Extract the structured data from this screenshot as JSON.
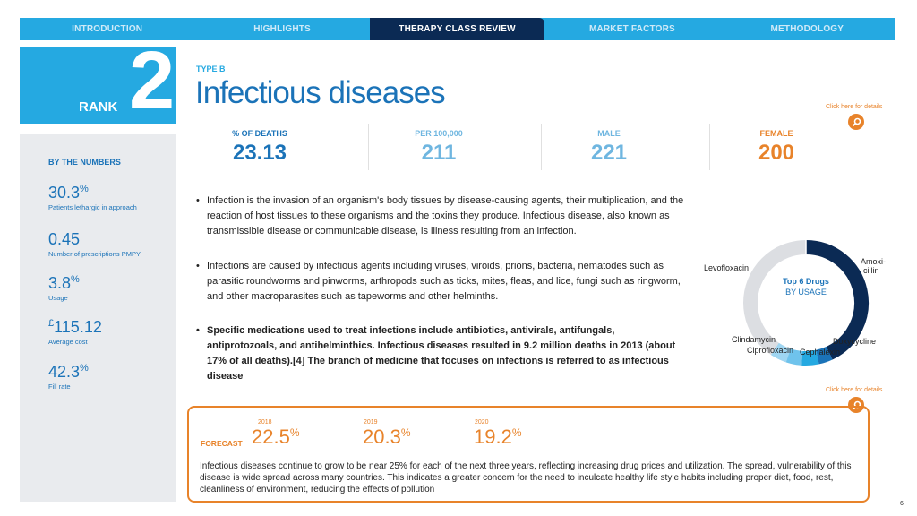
{
  "nav": {
    "tabs": [
      {
        "label": "INTRODUCTION"
      },
      {
        "label": "HIGHLIGHTS"
      },
      {
        "label": "THERAPY  CLASS REVIEW"
      },
      {
        "label": "MARKET  FACTORS"
      },
      {
        "label": "METHODOLOGY"
      }
    ],
    "active_index": 2
  },
  "rank": {
    "label": "RANK",
    "number": "2"
  },
  "sidebar": {
    "heading": "BY THE NUMBERS",
    "stats": [
      {
        "value": "30.3",
        "suffix": "%",
        "label": "Patients lethargic in approach"
      },
      {
        "value": "0.45",
        "suffix": "",
        "label": "Number of prescriptions PMPY"
      },
      {
        "value": "3.8",
        "suffix": "%",
        "label": "Usage"
      },
      {
        "prefix": "£",
        "value": "115.12",
        "label": "Average cost"
      },
      {
        "value": "42.3",
        "suffix": "%",
        "label": "Fill rate"
      }
    ]
  },
  "header": {
    "type": "TYPE B",
    "title": "Infectious diseases"
  },
  "details_link": "Click here for details",
  "metrics": [
    {
      "label": "% OF DEATHS",
      "value": "23.13",
      "color": "#1b73b8"
    },
    {
      "label": "PER 100,000",
      "value": "211",
      "color": "#6fb6e0"
    },
    {
      "label": "MALE",
      "value": "221",
      "color": "#6fb6e0"
    },
    {
      "label": "FEMALE",
      "value": "200",
      "color": "#e8832a"
    }
  ],
  "bullets": [
    "Infection is the invasion of an organism's body tissues by disease-causing agents, their multiplication, and the reaction of host tissues to these organisms and the toxins they produce. Infectious disease, also known as transmissible disease or communicable disease, is illness resulting from an infection.",
    "Infections are caused by infectious agents including viruses, viroids, prions, bacteria, nematodes such as parasitic roundworms and pinworms, arthropods such as ticks, mites, fleas, and lice, fungi such as ringworm, and other macroparasites such as tapeworms and other helminths.",
    "Specific medications used to treat infections include antibiotics, antivirals, antifungals, antiprotozoals, and antihelminthics. Infectious diseases resulted in 9.2 million deaths in 2013 (about 17% of all deaths).[4] The branch of medicine that focuses on infections is referred to as infectious disease"
  ],
  "donut": {
    "title": "Top 6 Drugs",
    "subtitle": "BY USAGE",
    "labels": {
      "amoxicillin_1": "Amoxi-",
      "amoxicillin_2": "cillin",
      "levofloxacin": "Levofloxacin",
      "clindamycin": "Clindamycin",
      "ciprofloxacin": "Ciprofloxacin",
      "cephalexin": "Cephalexin",
      "doxycycline": "Doxycycline"
    },
    "colors": [
      "#0b2a54",
      "#1b73b8",
      "#25a9e1",
      "#6fc3ec",
      "#9fd6f2",
      "#dcdee2"
    ]
  },
  "forecast": {
    "label": "FORECAST",
    "items": [
      {
        "year": "2018",
        "value": "22.5",
        "suffix": "%"
      },
      {
        "year": "2019",
        "value": "20.3",
        "suffix": "%"
      },
      {
        "year": "2020",
        "value": "19.2",
        "suffix": "%"
      }
    ],
    "text": "Infectious diseases continue to grow to be near 25% for each of the next three years, reflecting increasing drug prices  and utilization. The spread, vulnerability of this disease is wide spread across many countries. This indicates a greater concern for the need to inculcate healthy life style habits including proper diet, food, rest, cleanliness of environment, reducing the effects of pollution"
  },
  "page_number": "6"
}
